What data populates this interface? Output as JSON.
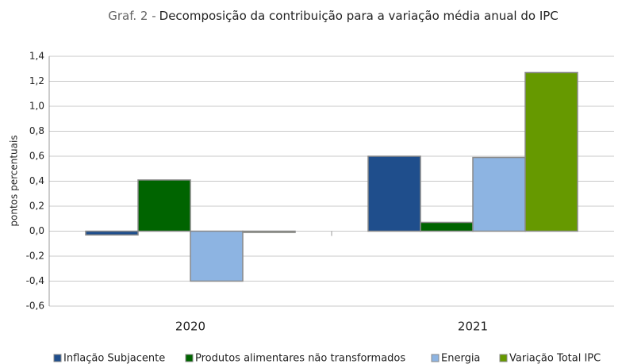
{
  "chart_data": {
    "type": "bar",
    "title_prefix": "Graf. 2 -",
    "title": "Decomposição da contribuição para a variação média anual do IPC",
    "y_label": "pontos percentuais",
    "categories": [
      "2020",
      "2021"
    ],
    "series": [
      {
        "name": "Inflação Subjacente",
        "color": "#1f4e8c",
        "values": [
          -0.03,
          0.6
        ]
      },
      {
        "name": "Produtos alimentares não transformados",
        "color": "#006400",
        "values": [
          0.41,
          0.07
        ]
      },
      {
        "name": "Energia",
        "color": "#8db4e2",
        "values": [
          -0.4,
          0.59
        ]
      },
      {
        "name": "Variação Total IPC",
        "color": "#669900",
        "values": [
          -0.01,
          1.27
        ]
      }
    ],
    "ylim": [
      -0.6,
      1.4
    ],
    "yticks": [
      {
        "value": -0.6,
        "label": "-0,6"
      },
      {
        "value": -0.4,
        "label": "-0,4"
      },
      {
        "value": -0.2,
        "label": "-0,2"
      },
      {
        "value": 0,
        "label": "0,0"
      },
      {
        "value": 0.2,
        "label": "0,2"
      },
      {
        "value": 0.4,
        "label": "0,4"
      },
      {
        "value": 0.6,
        "label": "0,6"
      },
      {
        "value": 0.8,
        "label": "0,8"
      },
      {
        "value": 1,
        "label": "1,0"
      },
      {
        "value": 1.2,
        "label": "1,2"
      },
      {
        "value": 1.4,
        "label": "1,4"
      }
    ],
    "grid": true,
    "legend": "bottom"
  }
}
